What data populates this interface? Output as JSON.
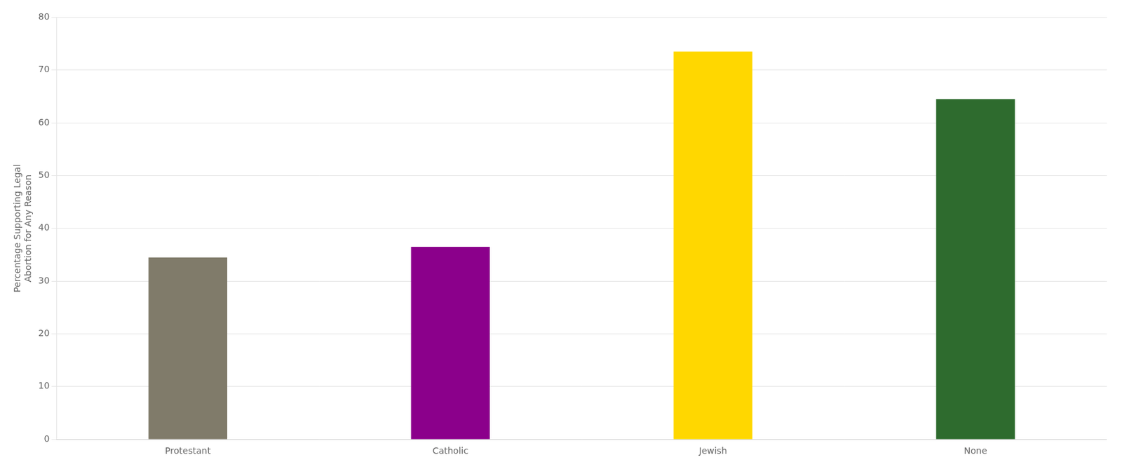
{
  "chart_data": {
    "type": "bar",
    "categories": [
      "Protestant",
      "Catholic",
      "Jewish",
      "None"
    ],
    "values": [
      34.5,
      36.5,
      73.5,
      64.5
    ],
    "colors": [
      "#807B6A",
      "#8B008B",
      "#FFD700",
      "#2E6B2E"
    ],
    "ylabel": "Percentage Supporting Legal\nAbortion for Any Reason",
    "ylim": [
      0,
      80
    ],
    "yticks": [
      0,
      10,
      20,
      30,
      40,
      50,
      60,
      70,
      80
    ],
    "grid": true
  }
}
